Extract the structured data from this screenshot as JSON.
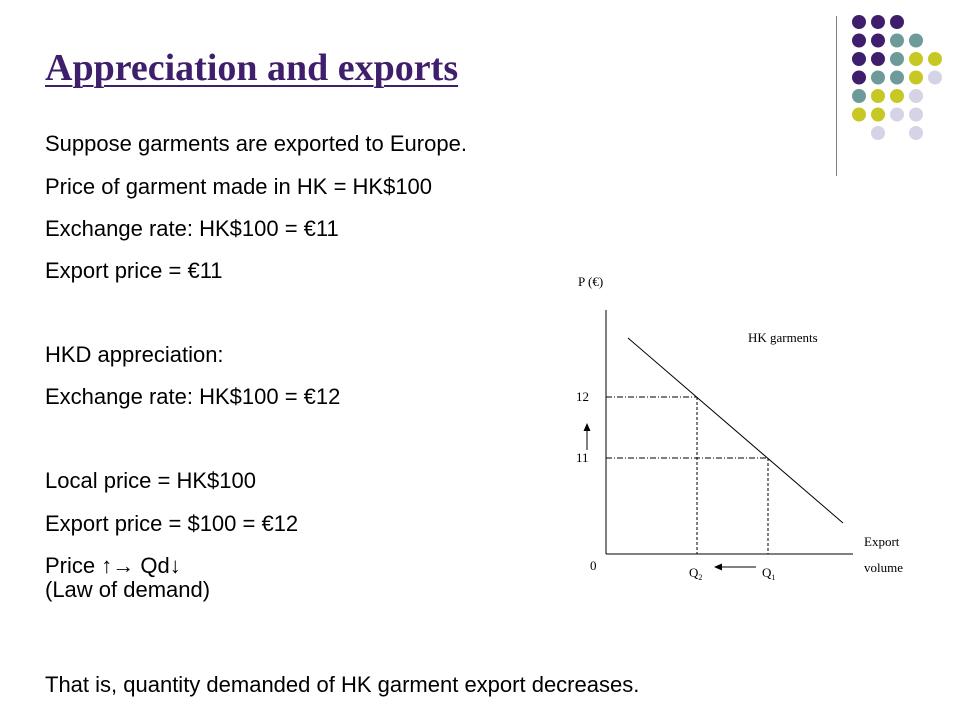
{
  "slide": {
    "title": "Appreciation and exports",
    "lines": [
      "Suppose garments are exported to Europe.",
      "Price of garment made in HK = HK$100",
      "Exchange rate: HK$100 = €11",
      "Export price = €11",
      "HKD appreciation:",
      "Exchange rate: HK$100 = €12",
      "Local price = HK$100",
      "Export price = $100 = €12",
      "Price ↑",
      "Qd↓",
      "(Law of demand)",
      "That is, quantity demanded of HK garment export decreases."
    ]
  },
  "decoration": {
    "dot_colors": {
      "purple": "#3f1f6b",
      "teal": "#6f9a9a",
      "yellow": "#c8c824",
      "lavender": "#d5d3e6"
    }
  },
  "diagram": {
    "y_label": "P (€)",
    "curve_label": "HK garments",
    "x_label_1": "Export",
    "x_label_2": "volume",
    "origin": "0",
    "p_high": "12",
    "p_low": "11",
    "q2_letter": "Q",
    "q2_sub": "2",
    "q1_letter": "Q",
    "q1_sub": "1"
  }
}
